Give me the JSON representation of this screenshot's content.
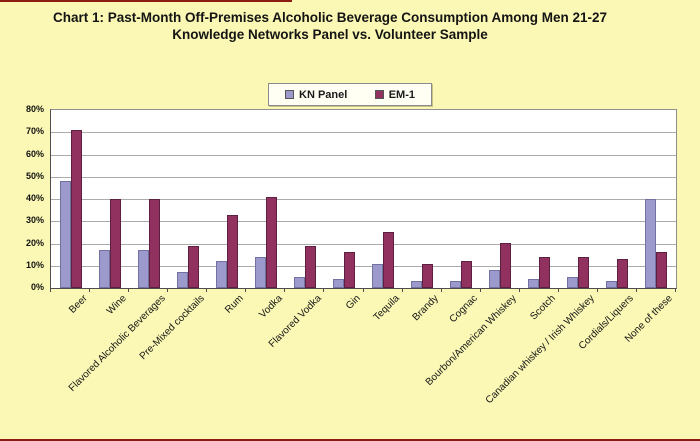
{
  "colors": {
    "page_background": "#FBF8B5",
    "rule_line": "#8C1D12",
    "plot_background": "#FFFFFF",
    "kn_panel": "#9C9ACC",
    "em1": "#913160"
  },
  "title": {
    "line1": "Chart 1: Past-Month Off-Premises Alcoholic Beverage Consumption Among Men 21-27",
    "line2": "Knowledge Networks Panel vs. Volunteer Sample"
  },
  "legend": {
    "items": [
      {
        "label": "KN Panel",
        "color": "#9C9ACC"
      },
      {
        "label": "EM-1",
        "color": "#913160"
      }
    ]
  },
  "chart_data": {
    "type": "bar",
    "title": "Chart 1: Past-Month Off-Premises Alcoholic Beverage Consumption Among Men 21-27 — Knowledge Networks Panel vs. Volunteer Sample",
    "categories": [
      "Beer",
      "Wine",
      "Flavored Alcoholic Beverages",
      "Pre-Mixed cocktails",
      "Rum",
      "Vodka",
      "Flavored Vodka",
      "Gin",
      "Tequila",
      "Brandy",
      "Cognac",
      "Bourbon/American Whiskey",
      "Scotch",
      "Canadian whiskey / Irish Whiskey",
      "Cordials/Liquers",
      "None of these"
    ],
    "series": [
      {
        "name": "KN Panel",
        "color": "#9C9ACC",
        "values": [
          48,
          17,
          17,
          7,
          12,
          14,
          5,
          4,
          11,
          3,
          3,
          8,
          4,
          5,
          3,
          40
        ]
      },
      {
        "name": "EM-1",
        "color": "#913160",
        "values": [
          71,
          40,
          40,
          19,
          33,
          41,
          19,
          16,
          25,
          11,
          12,
          20,
          14,
          14,
          13,
          16
        ]
      }
    ],
    "xlabel": "",
    "ylabel": "",
    "ylim": [
      0,
      80
    ],
    "y_tick_labels": [
      "0%",
      "10%",
      "20%",
      "30%",
      "40%",
      "50%",
      "60%",
      "70%",
      "80%"
    ],
    "grid": true,
    "legend_position": "top-center",
    "x_label_rotation_deg": 45
  }
}
